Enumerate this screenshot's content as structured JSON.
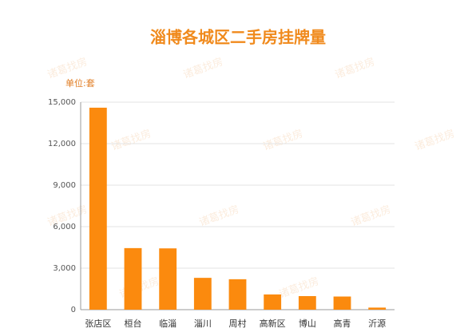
{
  "chart_data": {
    "type": "bar",
    "title": "淄博各城区二手房挂牌量",
    "y_label": "单位:套",
    "watermark": "诸葛找房",
    "categories": [
      "张店区",
      "桓台",
      "临淄",
      "淄川",
      "周村",
      "高新区",
      "博山",
      "高青",
      "沂源"
    ],
    "values": [
      14600,
      4450,
      4430,
      2300,
      2200,
      1100,
      980,
      950,
      150
    ],
    "color": "#fb8a0e",
    "ylim": [
      0,
      15000
    ],
    "yticks": [
      0,
      {
        "value": 3000,
        "label": "3,000"
      },
      {
        "value": 6000,
        "label": "6,000"
      },
      {
        "value": 9000,
        "label": "9,000"
      },
      {
        "value": 12000,
        "label": "12,000"
      },
      {
        "value": 15000,
        "label": "15,000"
      }
    ],
    "grid": true
  }
}
